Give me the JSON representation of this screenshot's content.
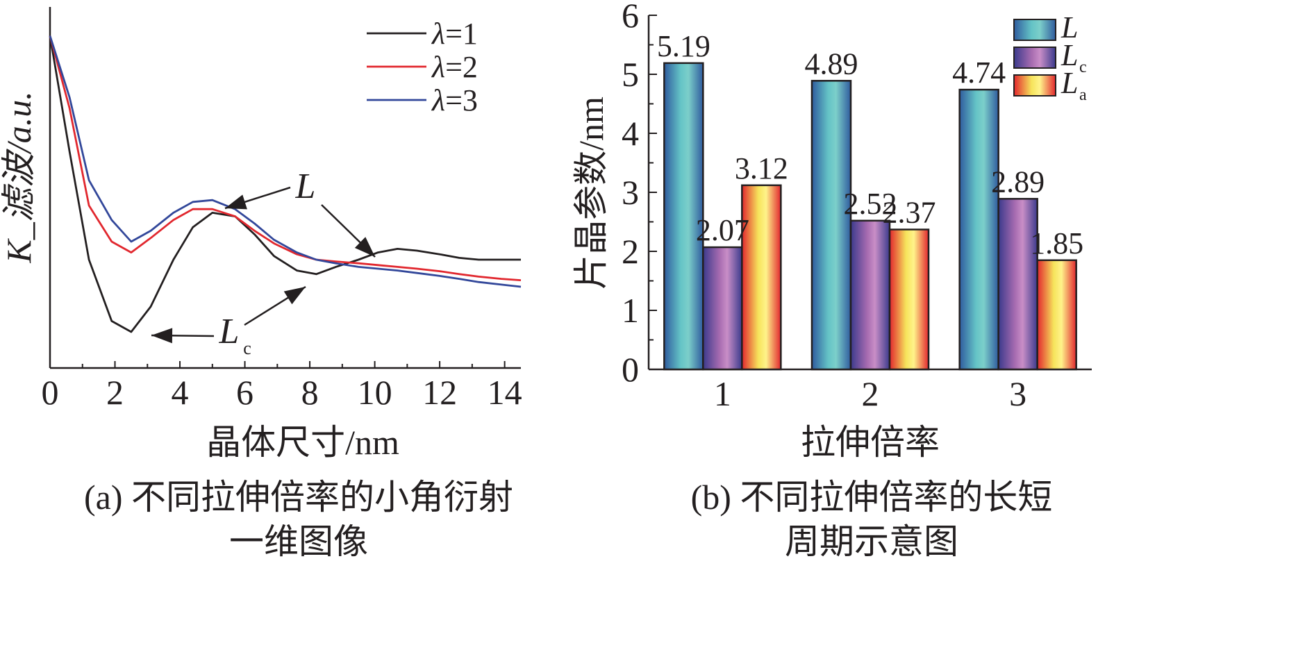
{
  "chart_data": [
    {
      "type": "line",
      "xlabel": "晶体尺寸/nm",
      "ylabel": "K_滤波/a.u.",
      "caption_line1": "(a) 不同拉伸倍率的小角衍射",
      "caption_line2": "一维图像",
      "xlim": [
        0,
        14.5
      ],
      "ylim": [
        0,
        1
      ],
      "xticks": [
        "0",
        "2",
        "4",
        "6",
        "8",
        "10",
        "12",
        "14"
      ],
      "series": [
        {
          "name": "λ=1",
          "color": "#231f20",
          "x": [
            0,
            0.6,
            1.2,
            1.9,
            2.5,
            3.1,
            3.8,
            4.4,
            5.0,
            5.7,
            6.3,
            6.9,
            7.6,
            8.2,
            8.8,
            9.5,
            10.1,
            10.7,
            11.3,
            12.0,
            12.6,
            13.2,
            13.9,
            14.5
          ],
          "y": [
            0.92,
            0.6,
            0.3,
            0.13,
            0.1,
            0.17,
            0.3,
            0.39,
            0.43,
            0.42,
            0.37,
            0.31,
            0.27,
            0.26,
            0.28,
            0.3,
            0.32,
            0.33,
            0.325,
            0.315,
            0.305,
            0.3,
            0.3,
            0.3
          ]
        },
        {
          "name": "λ=2",
          "color": "#e1272e",
          "x": [
            0,
            0.6,
            1.2,
            1.9,
            2.5,
            3.1,
            3.8,
            4.4,
            5.0,
            5.7,
            6.3,
            6.9,
            7.6,
            8.2,
            8.8,
            9.5,
            10.1,
            10.7,
            11.3,
            12.0,
            12.6,
            13.2,
            13.9,
            14.5
          ],
          "y": [
            0.92,
            0.72,
            0.45,
            0.35,
            0.32,
            0.36,
            0.41,
            0.44,
            0.44,
            0.42,
            0.38,
            0.345,
            0.315,
            0.3,
            0.295,
            0.29,
            0.285,
            0.28,
            0.275,
            0.268,
            0.26,
            0.253,
            0.247,
            0.243
          ]
        },
        {
          "name": "λ=3",
          "color": "#32479a",
          "x": [
            0,
            0.6,
            1.2,
            1.9,
            2.5,
            3.1,
            3.8,
            4.4,
            5.0,
            5.7,
            6.3,
            6.9,
            7.6,
            8.2,
            8.8,
            9.5,
            10.1,
            10.7,
            11.3,
            12.0,
            12.6,
            13.2,
            13.9,
            14.5
          ],
          "y": [
            0.92,
            0.75,
            0.52,
            0.41,
            0.35,
            0.38,
            0.43,
            0.46,
            0.465,
            0.44,
            0.4,
            0.355,
            0.32,
            0.3,
            0.29,
            0.28,
            0.275,
            0.27,
            0.263,
            0.255,
            0.247,
            0.238,
            0.231,
            0.225
          ]
        }
      ],
      "annotations": [
        {
          "label": "L",
          "sub": "",
          "target": "peak"
        },
        {
          "label": "L",
          "sub": "c",
          "target": "trough"
        }
      ],
      "legend": "top-right"
    },
    {
      "type": "bar",
      "xlabel": "拉伸倍率",
      "ylabel": "片晶参数/nm",
      "caption_line1": "(b) 不同拉伸倍率的长短",
      "caption_line2": "周期示意图",
      "categories": [
        "1",
        "2",
        "3"
      ],
      "ylim": [
        0,
        6
      ],
      "yticks": [
        "0",
        "1",
        "2",
        "3",
        "4",
        "5",
        "6"
      ],
      "series": [
        {
          "name": "L",
          "sub": "",
          "values": [
            5.19,
            4.89,
            4.74
          ],
          "labels": [
            "5.19",
            "4.89",
            "4.74"
          ],
          "gradient": [
            "#2f5b9e",
            "#64c3c6",
            "#7ccfca",
            "#2f5b9e"
          ]
        },
        {
          "name": "L",
          "sub": "c",
          "values": [
            2.07,
            2.52,
            2.89
          ],
          "labels": [
            "2.07",
            "2.52",
            "2.89"
          ],
          "gradient": [
            "#3b3a8c",
            "#a66bb0",
            "#c98ec7",
            "#3b3a8c"
          ]
        },
        {
          "name": "L",
          "sub": "a",
          "values": [
            3.12,
            2.37,
            1.85
          ],
          "labels": [
            "3.12",
            "2.37",
            "1.85"
          ],
          "gradient": [
            "#e2262e",
            "#f6e35b",
            "#fff38a",
            "#e2262e"
          ]
        }
      ],
      "legend": "top-right"
    }
  ]
}
